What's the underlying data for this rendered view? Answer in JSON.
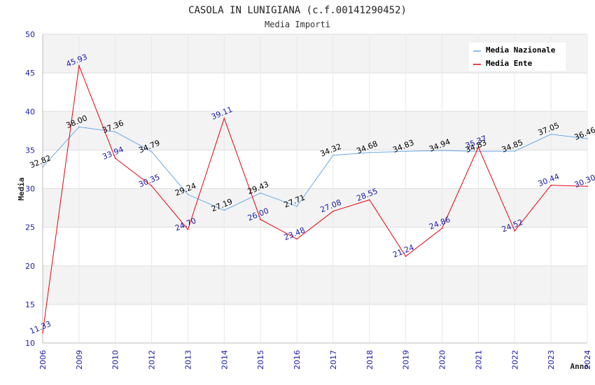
{
  "chart_data": {
    "type": "line",
    "title": "CASOLA IN LUNIGIANA (c.f.00141290452)",
    "subtitle": "Media Importi",
    "xlabel": "Anno",
    "ylabel": "Media",
    "ylim": [
      10,
      50
    ],
    "yticks": [
      "10",
      "15",
      "20",
      "25",
      "30",
      "35",
      "40",
      "45",
      "50"
    ],
    "categories": [
      "2006",
      "2009",
      "2010",
      "2012",
      "2013",
      "2014",
      "2015",
      "2016",
      "2017",
      "2018",
      "2019",
      "2020",
      "2021",
      "2022",
      "2023",
      "2024"
    ],
    "grid": true,
    "legend_position": "top-right",
    "series": [
      {
        "name": "Media Nazionale",
        "color": "#6aaae8",
        "label_color": "#000000",
        "values": [
          32.82,
          38.0,
          37.36,
          34.79,
          29.24,
          27.19,
          29.43,
          27.71,
          34.32,
          34.68,
          34.83,
          34.94,
          34.83,
          34.85,
          37.05,
          36.46
        ],
        "labels": [
          "32.82",
          "38.00",
          "37.36",
          "34.79",
          "29.24",
          "27.19",
          "29.43",
          "27.71",
          "34.32",
          "34.68",
          "34.83",
          "34.94",
          "34.83",
          "34.85",
          "37.05",
          "36.46"
        ]
      },
      {
        "name": "Media Ente",
        "color": "#e8000b",
        "label_color": "#1a1aa6",
        "values": [
          11.33,
          45.93,
          33.94,
          30.35,
          24.7,
          39.11,
          26.0,
          23.48,
          27.08,
          28.55,
          21.24,
          24.86,
          35.37,
          24.52,
          30.44,
          30.3
        ],
        "labels": [
          "11.33",
          "45.93",
          "33.94",
          "30.35",
          "24.70",
          "39.11",
          "26.00",
          "23.48",
          "27.08",
          "28.55",
          "21.24",
          "24.86",
          "35.37",
          "24.52",
          "30.44",
          "30.30"
        ]
      }
    ]
  }
}
